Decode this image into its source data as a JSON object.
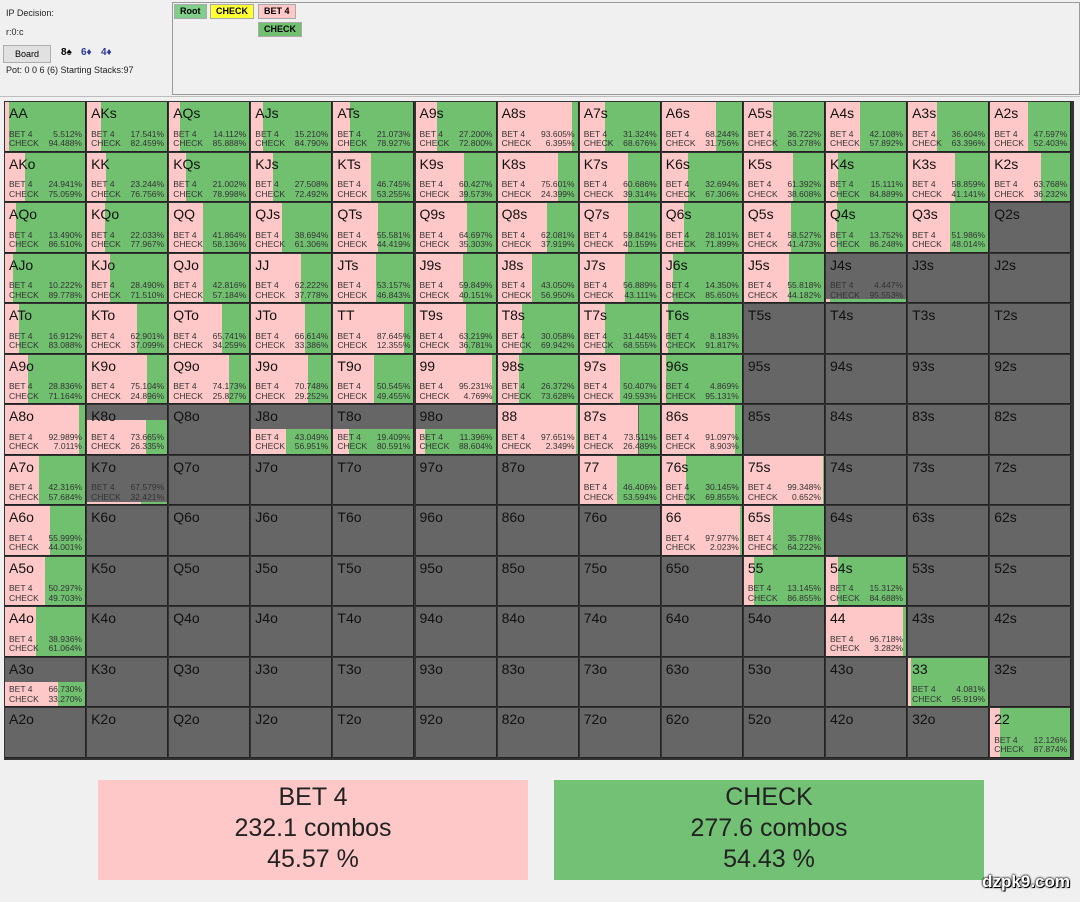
{
  "header": {
    "decision_label": "IP Decision:",
    "line": "r:0:c",
    "board_button": "Board",
    "board_cards": [
      {
        "text": "8♠",
        "color": "#000000"
      },
      {
        "text": "6♦",
        "color": "#2a3a9a"
      },
      {
        "text": "4♦",
        "color": "#2a3a9a"
      }
    ],
    "pot_text": "Pot: 0 0 6 (6) Starting Stacks:97"
  },
  "tree": {
    "nodes": [
      {
        "label": "Root",
        "color": "#7fcf8a"
      },
      {
        "label": "CHECK",
        "color": "#ffff33"
      },
      {
        "label": "BET 4",
        "color": "#ffc8c8"
      },
      {
        "label": "CHECK",
        "color": "#70c070"
      }
    ]
  },
  "labels": {
    "bet": "BET 4",
    "check": "CHECK"
  },
  "colors": {
    "bet": "#ffc8c8",
    "check": "#70c070",
    "empty": "#666666"
  },
  "grid": [
    [
      {
        "hand": "AA",
        "bet": "5.512%",
        "check": "94.488%"
      },
      {
        "hand": "AKs",
        "bet": "17.541%",
        "check": "82.459%"
      },
      {
        "hand": "AQs",
        "bet": "14.112%",
        "check": "85.888%"
      },
      {
        "hand": "AJs",
        "bet": "15.210%",
        "check": "84.790%"
      },
      {
        "hand": "ATs",
        "bet": "21.073%",
        "check": "78.927%"
      },
      {
        "hand": "A9s",
        "bet": "27.200%",
        "check": "72.800%"
      },
      {
        "hand": "A8s",
        "bet": "93.605%",
        "check": "6.395%"
      },
      {
        "hand": "A7s",
        "bet": "31.324%",
        "check": "68.676%"
      },
      {
        "hand": "A6s",
        "bet": "68.244%",
        "check": "31.756%"
      },
      {
        "hand": "A5s",
        "bet": "36.722%",
        "check": "63.278%"
      },
      {
        "hand": "A4s",
        "bet": "42.108%",
        "check": "57.892%"
      },
      {
        "hand": "A3s",
        "bet": "36.604%",
        "check": "63.396%"
      },
      {
        "hand": "A2s",
        "bet": "47.597%",
        "check": "52.403%"
      }
    ],
    [
      {
        "hand": "AKo",
        "bet": "24.941%",
        "check": "75.059%"
      },
      {
        "hand": "KK",
        "bet": "23.244%",
        "check": "76.756%"
      },
      {
        "hand": "KQs",
        "bet": "21.002%",
        "check": "78.998%"
      },
      {
        "hand": "KJs",
        "bet": "27.508%",
        "check": "72.492%"
      },
      {
        "hand": "KTs",
        "bet": "46.745%",
        "check": "53.255%"
      },
      {
        "hand": "K9s",
        "bet": "60.427%",
        "check": "39.573%"
      },
      {
        "hand": "K8s",
        "bet": "75.601%",
        "check": "24.399%"
      },
      {
        "hand": "K7s",
        "bet": "60.686%",
        "check": "39.314%"
      },
      {
        "hand": "K6s",
        "bet": "32.694%",
        "check": "67.306%"
      },
      {
        "hand": "K5s",
        "bet": "61.392%",
        "check": "38.608%"
      },
      {
        "hand": "K4s",
        "bet": "15.111%",
        "check": "84.889%"
      },
      {
        "hand": "K3s",
        "bet": "58.859%",
        "check": "41.141%"
      },
      {
        "hand": "K2s",
        "bet": "63.768%",
        "check": "36.232%"
      }
    ],
    [
      {
        "hand": "AQo",
        "bet": "13.490%",
        "check": "86.510%"
      },
      {
        "hand": "KQo",
        "bet": "22.033%",
        "check": "77.967%"
      },
      {
        "hand": "QQ",
        "bet": "41.864%",
        "check": "58.136%"
      },
      {
        "hand": "QJs",
        "bet": "38.694%",
        "check": "61.306%"
      },
      {
        "hand": "QTs",
        "bet": "55.581%",
        "check": "44.419%"
      },
      {
        "hand": "Q9s",
        "bet": "64.697%",
        "check": "35.303%"
      },
      {
        "hand": "Q8s",
        "bet": "62.081%",
        "check": "37.919%"
      },
      {
        "hand": "Q7s",
        "bet": "59.841%",
        "check": "40.159%"
      },
      {
        "hand": "Q6s",
        "bet": "28.101%",
        "check": "71.899%"
      },
      {
        "hand": "Q5s",
        "bet": "58.527%",
        "check": "41.473%"
      },
      {
        "hand": "Q4s",
        "bet": "13.752%",
        "check": "86.248%"
      },
      {
        "hand": "Q3s",
        "bet": "51.986%",
        "check": "48.014%"
      },
      {
        "hand": "Q2s"
      }
    ],
    [
      {
        "hand": "AJo",
        "bet": "10.222%",
        "check": "89.778%"
      },
      {
        "hand": "KJo",
        "bet": "28.490%",
        "check": "71.510%"
      },
      {
        "hand": "QJo",
        "bet": "42.816%",
        "check": "57.184%"
      },
      {
        "hand": "JJ",
        "bet": "62.222%",
        "check": "37.778%"
      },
      {
        "hand": "JTs",
        "bet": "53.157%",
        "check": "46.843%"
      },
      {
        "hand": "J9s",
        "bet": "59.849%",
        "check": "40.151%"
      },
      {
        "hand": "J8s",
        "bet": "43.050%",
        "check": "56.950%"
      },
      {
        "hand": "J7s",
        "bet": "56.889%",
        "check": "43.111%"
      },
      {
        "hand": "J6s",
        "bet": "14.350%",
        "check": "85.650%"
      },
      {
        "hand": "J5s",
        "bet": "55.818%",
        "check": "44.182%"
      },
      {
        "hand": "J4s",
        "bet": "4.447%",
        "check": "95.553%",
        "weight": 0.06
      },
      {
        "hand": "J3s"
      },
      {
        "hand": "J2s"
      }
    ],
    [
      {
        "hand": "ATo",
        "bet": "16.912%",
        "check": "83.088%"
      },
      {
        "hand": "KTo",
        "bet": "62.901%",
        "check": "37.099%"
      },
      {
        "hand": "QTo",
        "bet": "65.741%",
        "check": "34.259%"
      },
      {
        "hand": "JTo",
        "bet": "66.614%",
        "check": "33.386%"
      },
      {
        "hand": "TT",
        "bet": "87.645%",
        "check": "12.355%"
      },
      {
        "hand": "T9s",
        "bet": "63.219%",
        "check": "36.781%"
      },
      {
        "hand": "T8s",
        "bet": "30.058%",
        "check": "69.942%"
      },
      {
        "hand": "T7s",
        "bet": "31.445%",
        "check": "68.555%"
      },
      {
        "hand": "T6s",
        "bet": "8.183%",
        "check": "91.817%"
      },
      {
        "hand": "T5s"
      },
      {
        "hand": "T4s"
      },
      {
        "hand": "T3s"
      },
      {
        "hand": "T2s"
      }
    ],
    [
      {
        "hand": "A9o",
        "bet": "28.836%",
        "check": "71.164%"
      },
      {
        "hand": "K9o",
        "bet": "75.104%",
        "check": "24.896%"
      },
      {
        "hand": "Q9o",
        "bet": "74.173%",
        "check": "25.827%"
      },
      {
        "hand": "J9o",
        "bet": "70.748%",
        "check": "29.252%"
      },
      {
        "hand": "T9o",
        "bet": "50.545%",
        "check": "49.455%"
      },
      {
        "hand": "99",
        "bet": "95.231%",
        "check": "4.769%"
      },
      {
        "hand": "98s",
        "bet": "26.372%",
        "check": "73.628%"
      },
      {
        "hand": "97s",
        "bet": "50.407%",
        "check": "49.593%"
      },
      {
        "hand": "96s",
        "bet": "4.869%",
        "check": "95.131%"
      },
      {
        "hand": "95s"
      },
      {
        "hand": "94s"
      },
      {
        "hand": "93s"
      },
      {
        "hand": "92s"
      }
    ],
    [
      {
        "hand": "A8o",
        "bet": "92.989%",
        "check": "7.011%"
      },
      {
        "hand": "K8o",
        "bet": "73.665%",
        "check": "26.335%",
        "weight": 0.7
      },
      {
        "hand": "Q8o"
      },
      {
        "hand": "J8o",
        "bet": "43.049%",
        "check": "56.951%",
        "weight": 0.5
      },
      {
        "hand": "T8o",
        "bet": "19.409%",
        "check": "80.591%",
        "weight": 0.5
      },
      {
        "hand": "98o",
        "bet": "11.396%",
        "check": "88.604%",
        "weight": 0.5
      },
      {
        "hand": "88",
        "bet": "97.651%",
        "check": "2.349%"
      },
      {
        "hand": "87s",
        "bet": "73.511%",
        "check": "26.489%"
      },
      {
        "hand": "86s",
        "bet": "91.097%",
        "check": "8.903%"
      },
      {
        "hand": "85s"
      },
      {
        "hand": "84s"
      },
      {
        "hand": "83s"
      },
      {
        "hand": "82s"
      }
    ],
    [
      {
        "hand": "A7o",
        "bet": "42.316%",
        "check": "57.684%"
      },
      {
        "hand": "K7o",
        "bet": "67.579%",
        "check": "32.421%",
        "weight": 0.05
      },
      {
        "hand": "Q7o"
      },
      {
        "hand": "J7o"
      },
      {
        "hand": "T7o"
      },
      {
        "hand": "97o"
      },
      {
        "hand": "87o"
      },
      {
        "hand": "77",
        "bet": "46.406%",
        "check": "53.594%"
      },
      {
        "hand": "76s",
        "bet": "30.145%",
        "check": "69.855%"
      },
      {
        "hand": "75s",
        "bet": "99.348%",
        "check": "0.652%"
      },
      {
        "hand": "74s"
      },
      {
        "hand": "73s"
      },
      {
        "hand": "72s"
      }
    ],
    [
      {
        "hand": "A6o",
        "bet": "55.999%",
        "check": "44.001%"
      },
      {
        "hand": "K6o"
      },
      {
        "hand": "Q6o"
      },
      {
        "hand": "J6o"
      },
      {
        "hand": "T6o"
      },
      {
        "hand": "96o"
      },
      {
        "hand": "86o"
      },
      {
        "hand": "76o"
      },
      {
        "hand": "66",
        "bet": "97.977%",
        "check": "2.023%"
      },
      {
        "hand": "65s",
        "bet": "35.778%",
        "check": "64.222%"
      },
      {
        "hand": "64s"
      },
      {
        "hand": "63s"
      },
      {
        "hand": "62s"
      }
    ],
    [
      {
        "hand": "A5o",
        "bet": "50.297%",
        "check": "49.703%"
      },
      {
        "hand": "K5o"
      },
      {
        "hand": "Q5o"
      },
      {
        "hand": "J5o"
      },
      {
        "hand": "T5o"
      },
      {
        "hand": "95o"
      },
      {
        "hand": "85o"
      },
      {
        "hand": "75o"
      },
      {
        "hand": "65o"
      },
      {
        "hand": "55",
        "bet": "13.145%",
        "check": "86.855%"
      },
      {
        "hand": "54s",
        "bet": "15.312%",
        "check": "84.688%"
      },
      {
        "hand": "53s"
      },
      {
        "hand": "52s"
      }
    ],
    [
      {
        "hand": "A4o",
        "bet": "38.936%",
        "check": "61.064%"
      },
      {
        "hand": "K4o"
      },
      {
        "hand": "Q4o"
      },
      {
        "hand": "J4o"
      },
      {
        "hand": "T4o"
      },
      {
        "hand": "94o"
      },
      {
        "hand": "84o"
      },
      {
        "hand": "74o"
      },
      {
        "hand": "64o"
      },
      {
        "hand": "54o"
      },
      {
        "hand": "44",
        "bet": "96.718%",
        "check": "3.282%"
      },
      {
        "hand": "43s"
      },
      {
        "hand": "42s"
      }
    ],
    [
      {
        "hand": "A3o",
        "bet": "66.730%",
        "check": "33.270%",
        "weight": 0.5
      },
      {
        "hand": "K3o"
      },
      {
        "hand": "Q3o"
      },
      {
        "hand": "J3o"
      },
      {
        "hand": "T3o"
      },
      {
        "hand": "93o"
      },
      {
        "hand": "83o"
      },
      {
        "hand": "73o"
      },
      {
        "hand": "63o"
      },
      {
        "hand": "53o"
      },
      {
        "hand": "43o"
      },
      {
        "hand": "33",
        "bet": "4.081%",
        "check": "95.919%"
      },
      {
        "hand": "32s"
      }
    ],
    [
      {
        "hand": "A2o"
      },
      {
        "hand": "K2o"
      },
      {
        "hand": "Q2o"
      },
      {
        "hand": "J2o"
      },
      {
        "hand": "T2o"
      },
      {
        "hand": "92o"
      },
      {
        "hand": "82o"
      },
      {
        "hand": "72o"
      },
      {
        "hand": "62o"
      },
      {
        "hand": "52o"
      },
      {
        "hand": "42o"
      },
      {
        "hand": "32o"
      },
      {
        "hand": "22",
        "bet": "12.126%",
        "check": "87.874%"
      }
    ]
  ],
  "summary": [
    {
      "action": "BET 4",
      "combos": "232.1 combos",
      "percent": "45.57 %",
      "color": "#ffc8c8"
    },
    {
      "action": "CHECK",
      "combos": "277.6 combos",
      "percent": "54.43 %",
      "color": "#73c175"
    }
  ],
  "watermark": "dzpk9.com"
}
